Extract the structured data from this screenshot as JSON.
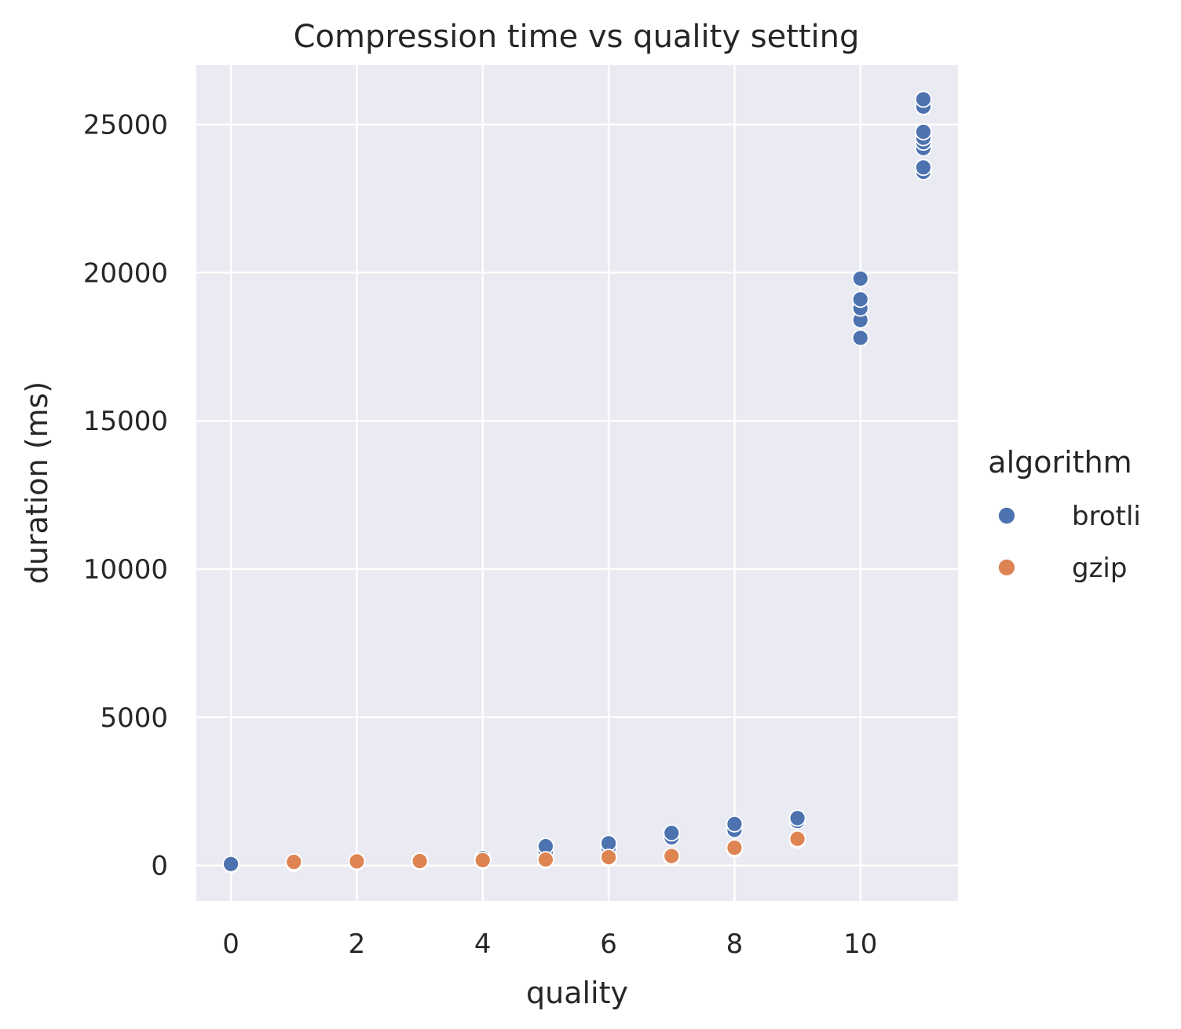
{
  "chart_data": {
    "type": "scatter",
    "title": "Compression time vs quality setting",
    "xlabel": "quality",
    "ylabel": "duration (ms)",
    "xlim": [
      -0.55,
      11.55
    ],
    "ylim": [
      -1200,
      27000
    ],
    "x_ticks": [
      0,
      2,
      4,
      6,
      8,
      10
    ],
    "y_ticks": [
      0,
      5000,
      10000,
      15000,
      20000,
      25000
    ],
    "grid": true,
    "legend": {
      "title": "algorithm",
      "placement": "right",
      "entries": [
        "brotli",
        "gzip"
      ]
    },
    "colors": {
      "brotli": "#4c72b0",
      "gzip": "#dd8452",
      "plot_background": "#eaeaf2",
      "grid": "#ffffff"
    },
    "series": [
      {
        "name": "brotli",
        "points": [
          [
            0,
            30
          ],
          [
            0,
            50
          ],
          [
            1,
            60
          ],
          [
            1,
            90
          ],
          [
            2,
            110
          ],
          [
            2,
            130
          ],
          [
            3,
            140
          ],
          [
            3,
            160
          ],
          [
            4,
            200
          ],
          [
            4,
            250
          ],
          [
            5,
            450
          ],
          [
            5,
            650
          ],
          [
            6,
            600
          ],
          [
            6,
            750
          ],
          [
            7,
            950
          ],
          [
            7,
            1100
          ],
          [
            8,
            1200
          ],
          [
            8,
            1400
          ],
          [
            9,
            1500
          ],
          [
            9,
            1600
          ],
          [
            10,
            17800
          ],
          [
            10,
            18400
          ],
          [
            10,
            18800
          ],
          [
            10,
            19100
          ],
          [
            10,
            19800
          ],
          [
            11,
            23400
          ],
          [
            11,
            23550
          ],
          [
            11,
            24200
          ],
          [
            11,
            24400
          ],
          [
            11,
            24550
          ],
          [
            11,
            24750
          ],
          [
            11,
            25600
          ],
          [
            11,
            25850
          ]
        ]
      },
      {
        "name": "gzip",
        "points": [
          [
            1,
            100
          ],
          [
            1,
            120
          ],
          [
            2,
            120
          ],
          [
            2,
            140
          ],
          [
            3,
            130
          ],
          [
            3,
            150
          ],
          [
            4,
            150
          ],
          [
            4,
            180
          ],
          [
            5,
            170
          ],
          [
            5,
            200
          ],
          [
            6,
            230
          ],
          [
            6,
            280
          ],
          [
            7,
            280
          ],
          [
            7,
            320
          ],
          [
            8,
            560
          ],
          [
            8,
            600
          ],
          [
            9,
            850
          ],
          [
            9,
            900
          ]
        ]
      }
    ]
  }
}
